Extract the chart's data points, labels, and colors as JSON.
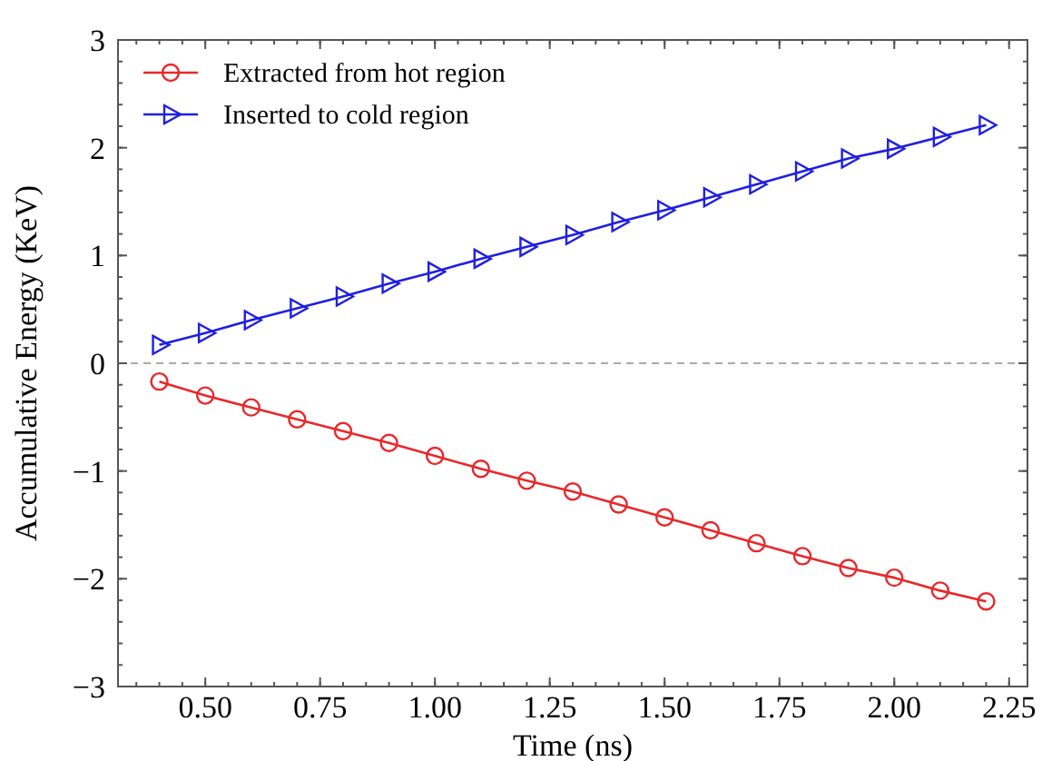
{
  "chart_data": {
    "type": "line",
    "xlabel": "Time (ns)",
    "ylabel": "Accumulative Energy (KeV)",
    "x": [
      0.4,
      0.5,
      0.6,
      0.7,
      0.8,
      0.9,
      1.0,
      1.1,
      1.2,
      1.3,
      1.4,
      1.5,
      1.6,
      1.7,
      1.8,
      1.9,
      2.0,
      2.1,
      2.2
    ],
    "series": [
      {
        "name": "Extracted from hot region",
        "color": "#e8282b",
        "marker": "circle",
        "values": [
          -0.17,
          -0.3,
          -0.41,
          -0.52,
          -0.63,
          -0.74,
          -0.86,
          -0.98,
          -1.09,
          -1.19,
          -1.31,
          -1.43,
          -1.55,
          -1.67,
          -1.79,
          -1.9,
          -1.99,
          -2.11,
          -2.21
        ]
      },
      {
        "name": "Inserted to cold region",
        "color": "#1f1fe0",
        "marker": "triangle",
        "values": [
          0.17,
          0.28,
          0.4,
          0.51,
          0.62,
          0.74,
          0.85,
          0.97,
          1.08,
          1.19,
          1.31,
          1.42,
          1.54,
          1.66,
          1.78,
          1.9,
          1.99,
          2.1,
          2.21
        ]
      }
    ],
    "xlim": [
      0.31,
      2.29
    ],
    "xticks": [
      {
        "value": 0.5,
        "label": "0.50"
      },
      {
        "value": 0.75,
        "label": "0.75"
      },
      {
        "value": 1.0,
        "label": "1.00"
      },
      {
        "value": 1.25,
        "label": "1.25"
      },
      {
        "value": 1.5,
        "label": "1.50"
      },
      {
        "value": 1.75,
        "label": "1.75"
      },
      {
        "value": 2.0,
        "label": "2.00"
      },
      {
        "value": 2.25,
        "label": "2.25"
      }
    ],
    "ylim": [
      -3,
      3
    ],
    "yticks": [
      {
        "value": -3,
        "label": "−3"
      },
      {
        "value": -2,
        "label": "−2"
      },
      {
        "value": -1,
        "label": "−1"
      },
      0,
      1,
      2,
      3
    ],
    "ref_lines": [
      {
        "axis": "y",
        "value": 0,
        "color": "#aaaaaa",
        "line_style": "dashed"
      }
    ],
    "grid": false,
    "legend": "top left",
    "line_style": "solid"
  }
}
